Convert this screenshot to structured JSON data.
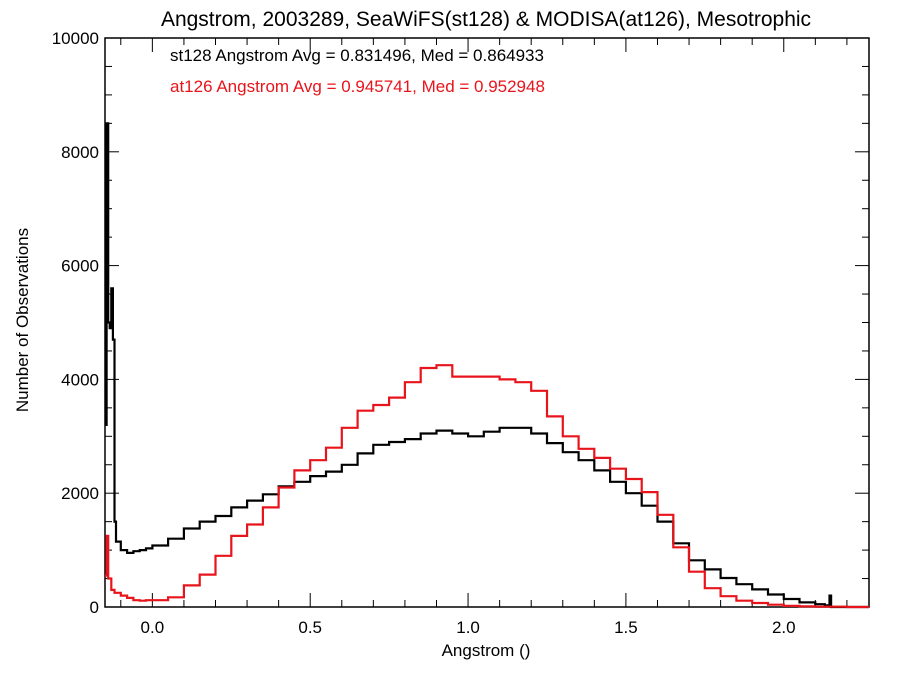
{
  "chart_data": {
    "type": "line",
    "title": "Angstrom, 2003289, SeaWiFS(st128) & MODISA(at126), Mesotrophic",
    "xlabel": "Angstrom ()",
    "ylabel": "Number of Observations",
    "xlim": [
      -0.15,
      2.27
    ],
    "ylim": [
      0,
      10000
    ],
    "xticks": [
      0.0,
      0.5,
      1.0,
      1.5,
      2.0
    ],
    "xtick_labels": [
      "0.0",
      "0.5",
      "1.0",
      "1.5",
      "2.0"
    ],
    "yticks": [
      0,
      2000,
      4000,
      6000,
      8000,
      10000
    ],
    "ytick_labels": [
      "0",
      "2000",
      "4000",
      "6000",
      "8000",
      "10000"
    ],
    "grid": false,
    "step": true,
    "annotations": [
      {
        "text": "st128 Angstrom Avg = 0.831496, Med = 0.864933",
        "color": "#000000"
      },
      {
        "text": "at126 Angstrom Avg = 0.945741, Med = 0.952948",
        "color": "#e8141b"
      }
    ],
    "series": [
      {
        "name": "st128",
        "color": "#000000",
        "points": [
          [
            -0.15,
            3200
          ],
          [
            -0.145,
            8500
          ],
          [
            -0.14,
            5000
          ],
          [
            -0.135,
            4900
          ],
          [
            -0.13,
            5600
          ],
          [
            -0.125,
            4700
          ],
          [
            -0.12,
            1500
          ],
          [
            -0.115,
            1150
          ],
          [
            -0.1,
            1000
          ],
          [
            -0.08,
            950
          ],
          [
            -0.06,
            980
          ],
          [
            -0.04,
            1000
          ],
          [
            -0.02,
            1030
          ],
          [
            0.0,
            1080
          ],
          [
            0.05,
            1200
          ],
          [
            0.1,
            1380
          ],
          [
            0.15,
            1500
          ],
          [
            0.2,
            1600
          ],
          [
            0.25,
            1750
          ],
          [
            0.3,
            1870
          ],
          [
            0.35,
            1980
          ],
          [
            0.4,
            2120
          ],
          [
            0.45,
            2200
          ],
          [
            0.5,
            2300
          ],
          [
            0.55,
            2380
          ],
          [
            0.6,
            2500
          ],
          [
            0.65,
            2700
          ],
          [
            0.7,
            2850
          ],
          [
            0.75,
            2900
          ],
          [
            0.8,
            2950
          ],
          [
            0.85,
            3050
          ],
          [
            0.9,
            3100
          ],
          [
            0.95,
            3050
          ],
          [
            1.0,
            3000
          ],
          [
            1.05,
            3080
          ],
          [
            1.1,
            3150
          ],
          [
            1.15,
            3150
          ],
          [
            1.2,
            3050
          ],
          [
            1.25,
            2880
          ],
          [
            1.3,
            2720
          ],
          [
            1.35,
            2580
          ],
          [
            1.4,
            2400
          ],
          [
            1.45,
            2200
          ],
          [
            1.5,
            2000
          ],
          [
            1.55,
            1780
          ],
          [
            1.6,
            1500
          ],
          [
            1.65,
            1120
          ],
          [
            1.7,
            820
          ],
          [
            1.75,
            660
          ],
          [
            1.8,
            510
          ],
          [
            1.85,
            400
          ],
          [
            1.9,
            310
          ],
          [
            1.95,
            220
          ],
          [
            2.0,
            140
          ],
          [
            2.05,
            80
          ],
          [
            2.1,
            50
          ],
          [
            2.13,
            30
          ],
          [
            2.145,
            200
          ],
          [
            2.15,
            0
          ],
          [
            2.27,
            0
          ]
        ]
      },
      {
        "name": "at126",
        "color": "#e8141b",
        "points": [
          [
            -0.15,
            550
          ],
          [
            -0.145,
            1250
          ],
          [
            -0.14,
            500
          ],
          [
            -0.13,
            300
          ],
          [
            -0.12,
            250
          ],
          [
            -0.1,
            200
          ],
          [
            -0.08,
            160
          ],
          [
            -0.06,
            120
          ],
          [
            -0.04,
            110
          ],
          [
            -0.02,
            120
          ],
          [
            0.0,
            120
          ],
          [
            0.02,
            120
          ],
          [
            0.05,
            170
          ],
          [
            0.1,
            380
          ],
          [
            0.15,
            570
          ],
          [
            0.2,
            900
          ],
          [
            0.25,
            1250
          ],
          [
            0.3,
            1450
          ],
          [
            0.35,
            1750
          ],
          [
            0.4,
            2100
          ],
          [
            0.45,
            2400
          ],
          [
            0.5,
            2580
          ],
          [
            0.55,
            2800
          ],
          [
            0.6,
            3150
          ],
          [
            0.65,
            3450
          ],
          [
            0.7,
            3550
          ],
          [
            0.75,
            3680
          ],
          [
            0.8,
            3950
          ],
          [
            0.85,
            4200
          ],
          [
            0.9,
            4250
          ],
          [
            0.95,
            4050
          ],
          [
            1.0,
            4050
          ],
          [
            1.05,
            4050
          ],
          [
            1.1,
            4000
          ],
          [
            1.15,
            3950
          ],
          [
            1.2,
            3800
          ],
          [
            1.25,
            3350
          ],
          [
            1.3,
            3000
          ],
          [
            1.35,
            2780
          ],
          [
            1.4,
            2620
          ],
          [
            1.45,
            2430
          ],
          [
            1.5,
            2250
          ],
          [
            1.55,
            2020
          ],
          [
            1.6,
            1620
          ],
          [
            1.65,
            1050
          ],
          [
            1.7,
            620
          ],
          [
            1.75,
            330
          ],
          [
            1.8,
            190
          ],
          [
            1.85,
            110
          ],
          [
            1.9,
            70
          ],
          [
            1.95,
            40
          ],
          [
            2.0,
            20
          ],
          [
            2.05,
            10
          ],
          [
            2.1,
            5
          ],
          [
            2.2,
            0
          ],
          [
            2.27,
            0
          ]
        ]
      }
    ]
  }
}
